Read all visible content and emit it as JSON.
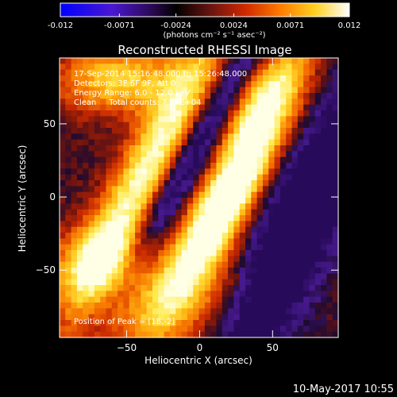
{
  "chart_data": {
    "type": "heatmap",
    "title": "Reconstructed RHESSI Image",
    "xlabel": "Heliocentric X (arcsec)",
    "ylabel": "Heliocentric Y (arcsec)",
    "xlim": [
      -96,
      95
    ],
    "ylim": [
      -96,
      95
    ],
    "x_ticks": [
      -50,
      0,
      50
    ],
    "y_ticks": [
      -50,
      0,
      50
    ],
    "colorbar": {
      "min": -0.012,
      "max": 0.012,
      "tick_values": [
        -0.012,
        -0.0071,
        -0.0024,
        0.0024,
        0.0071,
        0.012
      ],
      "tick_labels": [
        "-0.012",
        "-0.0071",
        "-0.0024",
        "0.0024",
        "0.0071",
        "0.012"
      ],
      "unit_label": "(photons cm⁻² s⁻¹ asec⁻²)",
      "colors": [
        "#0000ff",
        "#5a10d8",
        "#000000",
        "#7e1a1a",
        "#e23a00",
        "#ff8a00",
        "#ffe040",
        "#ffffff"
      ]
    },
    "annotations": {
      "time": "17-Sep-2014 15:16:48.000 to 15:26:48.000",
      "detectors": "Detectors: 3F 6F 9F, Att 0",
      "energy": "Energy Range: 6.0 - 12.0 keV",
      "method": "Clean     Total counts: 7.04E+04",
      "peak": "Position of Peak = [18,-2]"
    },
    "peak": [
      18,
      -2
    ]
  },
  "footer": {
    "date": "10-May-2017 10:55"
  }
}
